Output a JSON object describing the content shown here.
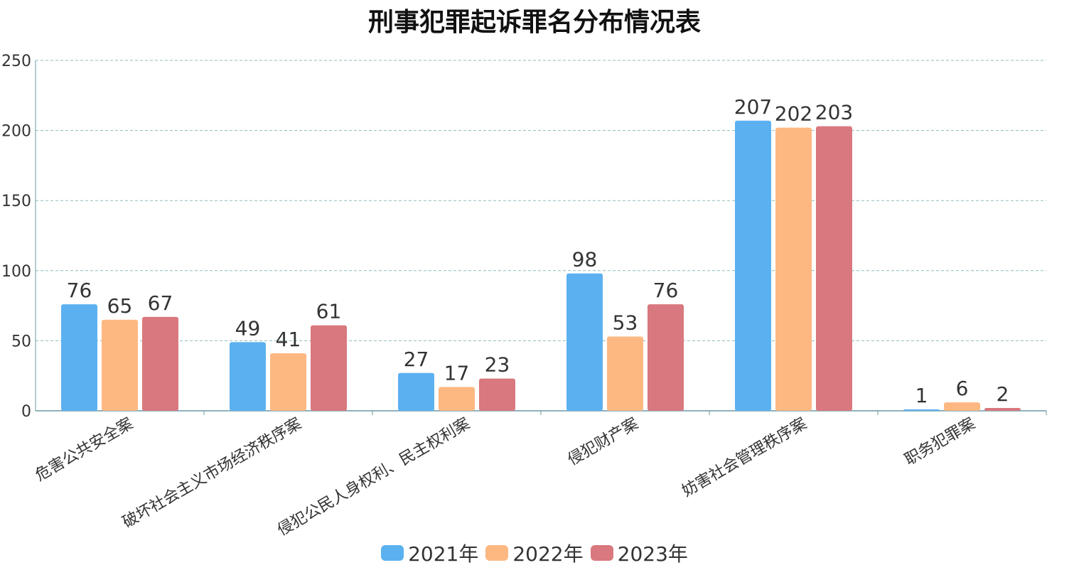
{
  "chart_data": {
    "type": "bar",
    "title": "刑事犯罪起诉罪名分布情况表",
    "categories": [
      "危害公共安全案",
      "破坏社会主义市场经济秩序案",
      "侵犯公民人身权利、民主权利案",
      "侵犯财产案",
      "妨害社会管理秩序案",
      "职务犯罪案"
    ],
    "series": [
      {
        "name": "2021年",
        "values": [
          76,
          49,
          27,
          98,
          207,
          1
        ],
        "color": "#5bb1f0"
      },
      {
        "name": "2022年",
        "values": [
          65,
          41,
          17,
          53,
          202,
          6
        ],
        "color": "#fdb882"
      },
      {
        "name": "2023年",
        "values": [
          67,
          61,
          23,
          76,
          203,
          2
        ],
        "color": "#d9787e"
      }
    ],
    "ylim": [
      0,
      250
    ],
    "yticks": [
      0,
      50,
      100,
      150,
      200,
      250
    ],
    "grid": true,
    "legend_position": "bottom"
  }
}
